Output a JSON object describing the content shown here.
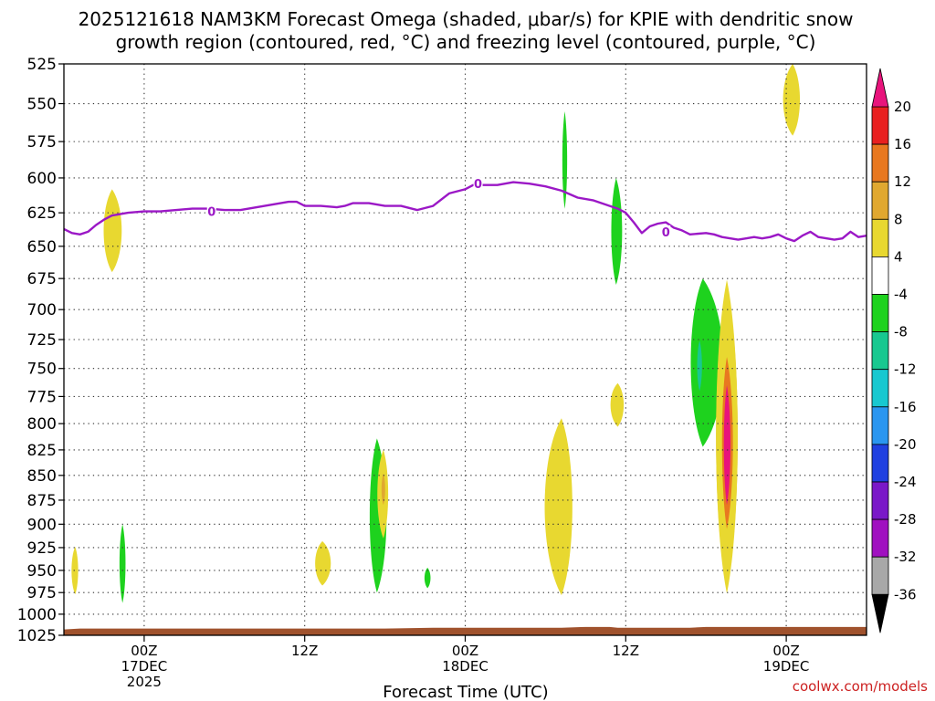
{
  "title": {
    "line1": "2025121618 NAM3KM Forecast Omega (shaded, μbar/s) for KPIE with dendritic snow",
    "line2": "growth region (contoured, red, °C) and freezing level (contoured, purple, °C)"
  },
  "credit": "coolwx.com/models",
  "chart_data": {
    "type": "heatmap",
    "title": "2025121618 NAM3KM Forecast Omega (shaded, μbar/s) for KPIE with dendritic snow growth region (contoured, red, °C) and freezing level (contoured, purple, °C)",
    "xlabel": "Forecast Time (UTC)",
    "ylabel": "",
    "x_range_hours": [
      -5,
      45
    ],
    "y_range_hPa": [
      1025,
      525
    ],
    "y_ticks": [
      525,
      550,
      575,
      600,
      625,
      650,
      675,
      700,
      725,
      750,
      775,
      800,
      825,
      850,
      875,
      900,
      925,
      950,
      975,
      1000,
      1025
    ],
    "x_ticks": [
      {
        "hour": 0,
        "lines": [
          "00Z",
          "17DEC",
          "2025"
        ]
      },
      {
        "hour": 10,
        "lines": [
          "12Z"
        ]
      },
      {
        "hour": 20,
        "lines": [
          "00Z",
          "18DEC"
        ]
      },
      {
        "hour": 30,
        "lines": [
          "12Z"
        ]
      },
      {
        "hour": 40,
        "lines": [
          "00Z",
          "19DEC"
        ]
      }
    ],
    "grid": true,
    "colorbar": {
      "ticks": [
        20,
        16,
        12,
        8,
        4,
        -4,
        -8,
        -12,
        -16,
        -20,
        -24,
        -28,
        -32,
        -36
      ],
      "segments": [
        {
          "from": 16,
          "to": 20,
          "color": "#e82020"
        },
        {
          "from": 12,
          "to": 16,
          "color": "#e87820"
        },
        {
          "from": 8,
          "to": 12,
          "color": "#e0a830"
        },
        {
          "from": 4,
          "to": 8,
          "color": "#e8d830"
        },
        {
          "from": -4,
          "to": 4,
          "color": "#ffffff"
        },
        {
          "from": -8,
          "to": -4,
          "color": "#1ed21e"
        },
        {
          "from": -12,
          "to": -8,
          "color": "#18c890"
        },
        {
          "from": -16,
          "to": -12,
          "color": "#18c8d0"
        },
        {
          "from": -20,
          "to": -16,
          "color": "#2a96f0"
        },
        {
          "from": -24,
          "to": -20,
          "color": "#2040e0"
        },
        {
          "from": -28,
          "to": -24,
          "color": "#7a18c8"
        },
        {
          "from": -32,
          "to": -28,
          "color": "#a010c0"
        },
        {
          "from": -36,
          "to": -32,
          "color": "#a8a8a8"
        }
      ],
      "top_arrow_color": "#e8147c",
      "bottom_arrow_color": "#000000"
    },
    "freezing_level": {
      "name": "freezing level",
      "color": "#9b18c6",
      "points": [
        [
          -5,
          637
        ],
        [
          -4.5,
          640
        ],
        [
          -4,
          641
        ],
        [
          -3.5,
          639
        ],
        [
          -3,
          634
        ],
        [
          -2.5,
          630
        ],
        [
          -2,
          627
        ],
        [
          -1.5,
          626
        ],
        [
          -1,
          625
        ],
        [
          0,
          624
        ],
        [
          1,
          624
        ],
        [
          2,
          623
        ],
        [
          3,
          622
        ],
        [
          4,
          622
        ],
        [
          5,
          623
        ],
        [
          6,
          623
        ],
        [
          7,
          621
        ],
        [
          8,
          619
        ],
        [
          9,
          617
        ],
        [
          9.5,
          617
        ],
        [
          10,
          620
        ],
        [
          11,
          620
        ],
        [
          12,
          621
        ],
        [
          12.5,
          620
        ],
        [
          13,
          618
        ],
        [
          14,
          618
        ],
        [
          15,
          620
        ],
        [
          16,
          620
        ],
        [
          17,
          623
        ],
        [
          18,
          620
        ],
        [
          19,
          611
        ],
        [
          20,
          608
        ],
        [
          20.5,
          605
        ],
        [
          21,
          605
        ],
        [
          22,
          605
        ],
        [
          23,
          603
        ],
        [
          24,
          604
        ],
        [
          25,
          606
        ],
        [
          26,
          609
        ],
        [
          27,
          614
        ],
        [
          28,
          616
        ],
        [
          29,
          620
        ],
        [
          29.5,
          622
        ],
        [
          30,
          625
        ],
        [
          30.5,
          632
        ],
        [
          31,
          640
        ],
        [
          31.5,
          635
        ],
        [
          32,
          633
        ],
        [
          32.5,
          632
        ],
        [
          33,
          636
        ],
        [
          33.5,
          638
        ],
        [
          34,
          641
        ],
        [
          35,
          640
        ],
        [
          35.5,
          641
        ],
        [
          36,
          643
        ],
        [
          37,
          645
        ],
        [
          37.5,
          644
        ],
        [
          38,
          643
        ],
        [
          38.5,
          644
        ],
        [
          39,
          643
        ],
        [
          39.5,
          641
        ],
        [
          40,
          644
        ],
        [
          40.5,
          646
        ],
        [
          41,
          642
        ],
        [
          41.5,
          639
        ],
        [
          42,
          643
        ],
        [
          43,
          645
        ],
        [
          43.5,
          644
        ],
        [
          44,
          639
        ],
        [
          44.5,
          643
        ],
        [
          45,
          642
        ]
      ],
      "labels": [
        {
          "x": 4.2,
          "y": 624,
          "text": "0"
        },
        {
          "x": 20.8,
          "y": 604,
          "text": "0"
        },
        {
          "x": 32.5,
          "y": 639,
          "text": "0"
        }
      ]
    },
    "omega_features": [
      {
        "cat": "4-8",
        "x": [
          -4.6,
          -4.3,
          -4.05
        ],
        "p_top": 924,
        "p_bot": 977
      },
      {
        "cat": "4-8",
        "x": [
          -2.7,
          -2.0,
          -1.2
        ],
        "p_top": 608,
        "p_bot": 670
      },
      {
        "cat": "-4--8",
        "x": [
          -1.6,
          -1.35,
          -1.1
        ],
        "p_top": 900,
        "p_bot": 987
      },
      {
        "cat": "4-8",
        "x": [
          10.5,
          11.1,
          11.8
        ],
        "p_top": 918,
        "p_bot": 967
      },
      {
        "cat": "-4--8",
        "x": [
          13.9,
          14.5,
          15.3
        ],
        "p_top": 814,
        "p_bot": 975
      },
      {
        "cat": "4-8",
        "x": [
          14.4,
          14.9,
          15.3
        ],
        "p_top": 825,
        "p_bot": 915
      },
      {
        "cat": "8-12",
        "x": [
          14.75,
          14.9,
          15.05
        ],
        "p_top": 848,
        "p_bot": 880
      },
      {
        "cat": "-4--8",
        "x": [
          17.4,
          17.65,
          17.9
        ],
        "p_top": 947,
        "p_bot": 970
      },
      {
        "cat": "-4--8",
        "x": [
          26.0,
          26.2,
          26.4
        ],
        "p_top": 555,
        "p_bot": 622
      },
      {
        "cat": "4-8",
        "x": [
          24.6,
          26.0,
          26.9
        ],
        "p_top": 795,
        "p_bot": 978
      },
      {
        "cat": "-4--8",
        "x": [
          29.0,
          29.4,
          29.9
        ],
        "p_top": 600,
        "p_bot": 680
      },
      {
        "cat": "4-8",
        "x": [
          28.9,
          29.5,
          30.0
        ],
        "p_top": 763,
        "p_bot": 803
      },
      {
        "cat": "-4--8",
        "x": [
          33.8,
          34.8,
          36.5
        ],
        "p_top": 675,
        "p_bot": 822
      },
      {
        "cat": "-8--12",
        "x": [
          34.4,
          34.6,
          34.8
        ],
        "p_top": 726,
        "p_bot": 770
      },
      {
        "cat": "8-12",
        "x": [
          35.4,
          36.3,
          37.2
        ],
        "p_top": 680,
        "p_bot": 970
      },
      {
        "cat": "4-8",
        "x": [
          35.4,
          36.3,
          37.2
        ],
        "p_top": 676,
        "p_bot": 976
      },
      {
        "cat": "12-16",
        "x": [
          35.9,
          36.3,
          36.8
        ],
        "p_top": 740,
        "p_bot": 905
      },
      {
        "cat": ">20",
        "x": [
          36.05,
          36.3,
          36.6
        ],
        "p_top": 765,
        "p_bot": 880
      },
      {
        "cat": "4-8",
        "x": [
          39.6,
          40.4,
          41.0
        ],
        "p_top": 525,
        "p_bot": 571
      }
    ],
    "terrain_color": "#a0522d"
  }
}
